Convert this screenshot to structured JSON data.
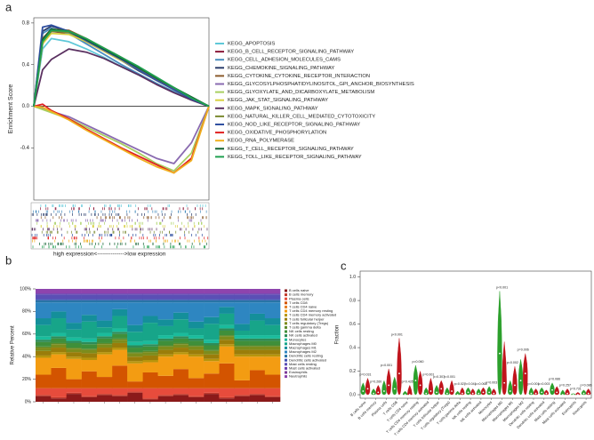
{
  "chart_data": [
    {
      "type": "line",
      "panel_label": "a",
      "ylabel": "Enrichment Score",
      "xlabel": "high expression<-------------->low expression",
      "x": [
        0,
        5,
        10,
        20,
        30,
        40,
        50,
        60,
        70,
        80,
        90,
        100
      ],
      "xlim": [
        0,
        100
      ],
      "ylim": [
        -0.9,
        0.85
      ],
      "yticks": [
        -0.4,
        {
          "value": 0,
          "label": "0.0"
        },
        0.4,
        0.8
      ],
      "series": [
        {
          "name": "KEGG_APOPTOSIS",
          "color": "#5fc8d8",
          "values": [
            0,
            0.55,
            0.65,
            0.62,
            0.55,
            0.47,
            0.38,
            0.3,
            0.22,
            0.14,
            0.07,
            0
          ]
        },
        {
          "name": "KEGG_B_CELL_RECEPTOR_SIGNALING_PATHWAY",
          "color": "#8b1a3a",
          "values": [
            0,
            0.6,
            0.72,
            0.7,
            0.62,
            0.53,
            0.44,
            0.35,
            0.26,
            0.17,
            0.08,
            0
          ]
        },
        {
          "name": "KEGG_CELL_ADHESION_MOLECULES_CAMS",
          "color": "#4a8fc0",
          "values": [
            0,
            0.7,
            0.75,
            0.7,
            0.6,
            0.5,
            0.4,
            0.31,
            0.22,
            0.14,
            0.06,
            0
          ]
        },
        {
          "name": "KEGG_CHEMOKINE_SIGNALING_PATHWAY",
          "color": "#2b3d6b",
          "values": [
            0,
            0.72,
            0.77,
            0.72,
            0.63,
            0.54,
            0.44,
            0.34,
            0.25,
            0.16,
            0.07,
            0
          ]
        },
        {
          "name": "KEGG_CYTOKINE_CYTOKINE_RECEPTOR_INTERACTION",
          "color": "#8a5a2b",
          "values": [
            0,
            0.65,
            0.74,
            0.73,
            0.65,
            0.56,
            0.47,
            0.37,
            0.27,
            0.17,
            0.08,
            0
          ]
        },
        {
          "name": "KEGG_GLYCOSYLPHOSPHATIDYLINOSITOL_GPI_ANCHOR_BIOSYNTHESIS",
          "color": "#8a6bb0",
          "values": [
            0,
            -0.02,
            -0.05,
            -0.1,
            -0.18,
            -0.26,
            -0.34,
            -0.42,
            -0.5,
            -0.55,
            -0.35,
            0
          ]
        },
        {
          "name": "KEGG_GLYOXYLATE_AND_DICARBOXYLATE_METABOLISM",
          "color": "#a8d060",
          "values": [
            0,
            -0.03,
            -0.06,
            -0.12,
            -0.2,
            -0.28,
            -0.36,
            -0.45,
            -0.55,
            -0.62,
            -0.45,
            0
          ]
        },
        {
          "name": "KEGG_JAK_STAT_SIGNALING_PATHWAY",
          "color": "#d8d040",
          "values": [
            0,
            0.6,
            0.7,
            0.69,
            0.62,
            0.53,
            0.44,
            0.35,
            0.25,
            0.16,
            0.07,
            0
          ]
        },
        {
          "name": "KEGG_MAPK_SIGNALING_PATHWAY",
          "color": "#5a3060",
          "values": [
            0,
            0.35,
            0.45,
            0.55,
            0.52,
            0.46,
            0.38,
            0.3,
            0.21,
            0.13,
            0.06,
            0
          ]
        },
        {
          "name": "KEGG_NATURAL_KILLER_CELL_MEDIATED_CYTOTOXICITY",
          "color": "#7a8a30",
          "values": [
            0,
            0.62,
            0.72,
            0.71,
            0.64,
            0.55,
            0.46,
            0.36,
            0.26,
            0.17,
            0.08,
            0
          ]
        },
        {
          "name": "KEGG_NOD_LIKE_RECEPTOR_SIGNALING_PATHWAY",
          "color": "#3050a0",
          "values": [
            0,
            0.76,
            0.78,
            0.72,
            0.63,
            0.54,
            0.45,
            0.35,
            0.25,
            0.16,
            0.07,
            0
          ]
        },
        {
          "name": "KEGG_OXIDATIVE_PHOSPHORYLATION",
          "color": "#e02020",
          "values": [
            0,
            0.02,
            -0.04,
            -0.12,
            -0.22,
            -0.31,
            -0.4,
            -0.48,
            -0.56,
            -0.64,
            -0.5,
            0
          ]
        },
        {
          "name": "KEGG_RNA_POLYMERASE",
          "color": "#f0b020",
          "values": [
            0,
            -0.01,
            -0.05,
            -0.13,
            -0.23,
            -0.32,
            -0.41,
            -0.5,
            -0.58,
            -0.64,
            -0.52,
            0
          ]
        },
        {
          "name": "KEGG_T_CELL_RECEPTOR_SIGNALING_PATHWAY",
          "color": "#106030",
          "values": [
            0,
            0.64,
            0.74,
            0.72,
            0.64,
            0.55,
            0.46,
            0.37,
            0.27,
            0.18,
            0.09,
            0
          ]
        },
        {
          "name": "KEGG_TOLL_LIKE_RECEPTOR_SIGNALING_PATHWAY",
          "color": "#20a050",
          "values": [
            0,
            0.62,
            0.73,
            0.72,
            0.65,
            0.56,
            0.47,
            0.38,
            0.28,
            0.18,
            0.08,
            0
          ]
        }
      ]
    },
    {
      "type": "stacked_bar",
      "panel_label": "b",
      "ylabel": "Relative Percent",
      "ylim": [
        0,
        100
      ],
      "yticks": [
        {
          "value": 0,
          "label": "0%"
        },
        {
          "value": 20,
          "label": "20%"
        },
        {
          "value": 40,
          "label": "40%"
        },
        {
          "value": 60,
          "label": "60%"
        },
        {
          "value": 80,
          "label": "80%"
        },
        {
          "value": 100,
          "label": "100%"
        }
      ],
      "series": [
        {
          "name": "B cells naive",
          "color": "#8b1a1a",
          "values": [
            5,
            3,
            7,
            4,
            6,
            5,
            8,
            2,
            5,
            6,
            4,
            7,
            3,
            5,
            6,
            4
          ]
        },
        {
          "name": "B cells memory",
          "color": "#c0392b",
          "values": [
            1,
            1,
            1,
            1,
            1,
            1,
            1,
            1,
            1,
            1,
            1,
            1,
            1,
            1,
            1,
            1
          ]
        },
        {
          "name": "Plasma cells",
          "color": "#e74c3c",
          "values": [
            6,
            8,
            4,
            7,
            5,
            6,
            3,
            9,
            6,
            5,
            7,
            4,
            8,
            6,
            5,
            7
          ]
        },
        {
          "name": "T cells CD8",
          "color": "#d35400",
          "values": [
            12,
            18,
            8,
            15,
            10,
            20,
            6,
            14,
            11,
            17,
            9,
            13,
            22,
            7,
            16,
            12
          ]
        },
        {
          "name": "T cells CD4 naive",
          "color": "#e67e22",
          "values": [
            0,
            0,
            0,
            0,
            0,
            0,
            0,
            0,
            0,
            0,
            0,
            0,
            0,
            0,
            0,
            0
          ]
        },
        {
          "name": "T cells CD4 memory resting",
          "color": "#f39c12",
          "values": [
            15,
            12,
            18,
            10,
            20,
            14,
            16,
            9,
            17,
            13,
            19,
            11,
            15,
            21,
            12,
            16
          ]
        },
        {
          "name": "T cells CD4 memory activated",
          "color": "#b7950b",
          "values": [
            2,
            2,
            2,
            2,
            2,
            2,
            2,
            2,
            2,
            2,
            2,
            2,
            2,
            2,
            2,
            2
          ]
        },
        {
          "name": "T cells follicular helper",
          "color": "#9a7d0a",
          "values": [
            4,
            4,
            4,
            4,
            4,
            4,
            4,
            4,
            4,
            4,
            4,
            4,
            4,
            4,
            4,
            4
          ]
        },
        {
          "name": "T cells regulatory (Tregs)",
          "color": "#7d8c1c",
          "values": [
            3,
            3,
            3,
            3,
            3,
            3,
            3,
            3,
            3,
            3,
            3,
            3,
            3,
            3,
            3,
            3
          ]
        },
        {
          "name": "T cells gamma delta",
          "color": "#5d8a2a",
          "values": [
            1,
            1,
            1,
            1,
            1,
            1,
            1,
            1,
            1,
            1,
            1,
            1,
            1,
            1,
            1,
            1
          ]
        },
        {
          "name": "NK cells resting",
          "color": "#3f8f3a",
          "values": [
            4,
            4,
            4,
            4,
            4,
            4,
            4,
            4,
            4,
            4,
            4,
            4,
            4,
            4,
            4,
            4
          ]
        },
        {
          "name": "NK cells activated",
          "color": "#2e8b57",
          "values": [
            2,
            2,
            2,
            2,
            2,
            2,
            2,
            2,
            2,
            2,
            2,
            2,
            2,
            2,
            2,
            2
          ]
        },
        {
          "name": "Monocytes",
          "color": "#1abc9c",
          "values": [
            3,
            3,
            3,
            3,
            3,
            3,
            3,
            3,
            3,
            3,
            3,
            3,
            3,
            3,
            3,
            3
          ]
        },
        {
          "name": "Macrophages M0",
          "color": "#17a589",
          "values": [
            10,
            13,
            7,
            15,
            5,
            11,
            9,
            16,
            8,
            12,
            6,
            14,
            10,
            4,
            13,
            9
          ]
        },
        {
          "name": "Macrophages M1",
          "color": "#148f9a",
          "values": [
            6,
            6,
            6,
            6,
            6,
            6,
            6,
            6,
            6,
            6,
            6,
            6,
            6,
            6,
            6,
            6
          ]
        },
        {
          "name": "Macrophages M2",
          "color": "#2e86c1",
          "values": [
            14,
            8,
            18,
            11,
            16,
            6,
            20,
            12,
            15,
            9,
            17,
            13,
            4,
            19,
            10,
            14
          ]
        },
        {
          "name": "Dendritic cells resting",
          "color": "#2874a6",
          "values": [
            2,
            2,
            2,
            2,
            2,
            2,
            2,
            2,
            2,
            2,
            2,
            2,
            2,
            2,
            2,
            2
          ]
        },
        {
          "name": "Dendritic cells activated",
          "color": "#3f51b5",
          "values": [
            1,
            1,
            1,
            1,
            1,
            1,
            1,
            1,
            1,
            1,
            1,
            1,
            1,
            1,
            1,
            1
          ]
        },
        {
          "name": "Mast cells resting",
          "color": "#5b4fb5",
          "values": [
            4,
            4,
            4,
            4,
            4,
            4,
            4,
            4,
            4,
            4,
            4,
            4,
            4,
            4,
            4,
            4
          ]
        },
        {
          "name": "Mast cells activated",
          "color": "#6c3fb0",
          "values": [
            1,
            1,
            1,
            1,
            1,
            1,
            1,
            1,
            1,
            1,
            1,
            1,
            1,
            1,
            1,
            1
          ]
        },
        {
          "name": "Eosinophils",
          "color": "#7d3c98",
          "values": [
            0,
            0,
            0,
            0,
            0,
            0,
            0,
            0,
            0,
            0,
            0,
            0,
            0,
            0,
            0,
            0
          ]
        },
        {
          "name": "Neutrophils",
          "color": "#8e44ad",
          "values": [
            4,
            4,
            4,
            4,
            4,
            4,
            4,
            4,
            4,
            4,
            4,
            4,
            4,
            4,
            4,
            4
          ]
        }
      ]
    },
    {
      "type": "violin",
      "panel_label": "c",
      "ylabel": "Fraction",
      "categories": [
        "B cells naive",
        "B cells memory",
        "Plasma cells",
        "T cells CD8",
        "T cells CD4 naive",
        "T cells CD4 memory resting",
        "T cells CD4 memory activated",
        "T cells follicular helper",
        "T cells regulatory (Tregs)",
        "T cells gamma delta",
        "NK cells resting",
        "NK cells activated",
        "Monocytes",
        "Macrophages M0",
        "Macrophages M1",
        "Macrophages M2",
        "Dendritic cells resting",
        "Dendritic cells activated",
        "Mast cells resting",
        "Mast cells activated",
        "Eosinophils",
        "Neutrophils"
      ],
      "ylim": [
        -0.03,
        1.05
      ],
      "yticks": [
        {
          "value": 0,
          "label": "0.0"
        },
        0.2,
        0.4,
        0.6,
        0.8,
        {
          "value": 1,
          "label": "1.0"
        }
      ],
      "pvalues": [
        "p=0.031",
        "p=0.260",
        "p=0.001",
        "p<0.001",
        "p=0.435",
        "p=0.060",
        "p=0.001",
        "p=0.307",
        "p=0.001",
        "p=0.027",
        "p=0.041",
        "p=0.063",
        "p=0.003",
        "p<0.001",
        "p=0.002",
        "p=0.006",
        "p=0.001",
        "p=0.003",
        "p=0.086",
        "p=0.257",
        "p=0.731",
        "p=0.086"
      ],
      "series": [
        {
          "color": "#2ca02c",
          "values": [
            0.03,
            0.01,
            0.03,
            0.05,
            0,
            0.12,
            0.01,
            0.02,
            0.01,
            0,
            0.02,
            0.01,
            0.02,
            0.35,
            0.03,
            0.12,
            0.01,
            0.02,
            0.04,
            0,
            0,
            0.01
          ],
          "max": [
            0.1,
            0.05,
            0.12,
            0.15,
            0.03,
            0.25,
            0.06,
            0.08,
            0.06,
            0.03,
            0.06,
            0.05,
            0.07,
            0.88,
            0.12,
            0.3,
            0.06,
            0.06,
            0.1,
            0.04,
            0.01,
            0.04
          ]
        },
        {
          "color": "#c0141c",
          "values": [
            0.05,
            0.02,
            0.08,
            0.18,
            0,
            0.08,
            0.03,
            0.05,
            0.03,
            0.01,
            0.01,
            0.02,
            0.01,
            0.1,
            0.08,
            0.18,
            0.01,
            0.01,
            0.02,
            0.01,
            0,
            0.01
          ],
          "max": [
            0.14,
            0.08,
            0.22,
            0.48,
            0.08,
            0.2,
            0.14,
            0.12,
            0.12,
            0.06,
            0.05,
            0.06,
            0.05,
            0.45,
            0.24,
            0.35,
            0.05,
            0.04,
            0.07,
            0.05,
            0.02,
            0.05
          ]
        }
      ]
    }
  ]
}
